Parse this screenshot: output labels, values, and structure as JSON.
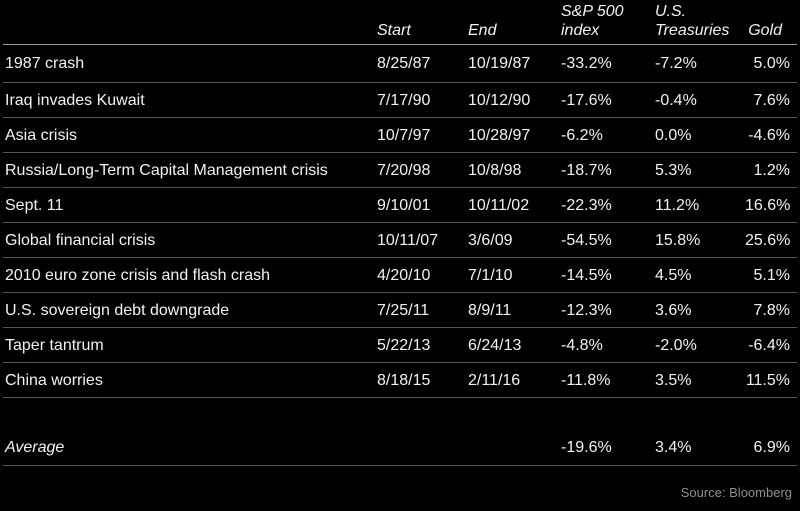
{
  "chart_data": {
    "type": "table",
    "header": {
      "event": "",
      "start": "Start",
      "end": "End",
      "sp500": "S&P 500\nindex",
      "treasuries": "U.S.\nTreasuries",
      "gold": "Gold"
    },
    "rows": [
      {
        "event": "1987 crash",
        "start": "8/25/87",
        "end": "10/19/87",
        "sp500": "-33.2%",
        "treasuries": "-7.2%",
        "gold": "5.0%"
      },
      {
        "event": "Iraq invades Kuwait",
        "start": "7/17/90",
        "end": "10/12/90",
        "sp500": "-17.6%",
        "treasuries": "-0.4%",
        "gold": "7.6%"
      },
      {
        "event": "Asia crisis",
        "start": "10/7/97",
        "end": "10/28/97",
        "sp500": "-6.2%",
        "treasuries": "0.0%",
        "gold": "-4.6%"
      },
      {
        "event": "Russia/Long-Term Capital Management crisis",
        "start": "7/20/98",
        "end": "10/8/98",
        "sp500": "-18.7%",
        "treasuries": "5.3%",
        "gold": "1.2%"
      },
      {
        "event": "Sept. 11",
        "start": "9/10/01",
        "end": "10/11/02",
        "sp500": "-22.3%",
        "treasuries": "11.2%",
        "gold": "16.6%"
      },
      {
        "event": "Global financial crisis",
        "start": "10/11/07",
        "end": "3/6/09",
        "sp500": "-54.5%",
        "treasuries": "15.8%",
        "gold": "25.6%"
      },
      {
        "event": "2010 euro zone crisis and flash crash",
        "start": "4/20/10",
        "end": "7/1/10",
        "sp500": "-14.5%",
        "treasuries": "4.5%",
        "gold": "5.1%"
      },
      {
        "event": "U.S. sovereign debt downgrade",
        "start": "7/25/11",
        "end": "8/9/11",
        "sp500": "-12.3%",
        "treasuries": "3.6%",
        "gold": "7.8%"
      },
      {
        "event": "Taper tantrum",
        "start": "5/22/13",
        "end": "6/24/13",
        "sp500": "-4.8%",
        "treasuries": "-2.0%",
        "gold": "-6.4%"
      },
      {
        "event": "China worries",
        "start": "8/18/15",
        "end": "2/11/16",
        "sp500": "-11.8%",
        "treasuries": "3.5%",
        "gold": "11.5%"
      }
    ],
    "average": {
      "label": "Average",
      "sp500": "-19.6%",
      "treasuries": "3.4%",
      "gold": "6.9%"
    },
    "source": "Source: Bloomberg"
  },
  "colors": {
    "background": "#000000",
    "text": "#f2f2f2",
    "header_rule": "#9a9a9a",
    "row_rule": "#565656",
    "source_text": "#909090"
  }
}
